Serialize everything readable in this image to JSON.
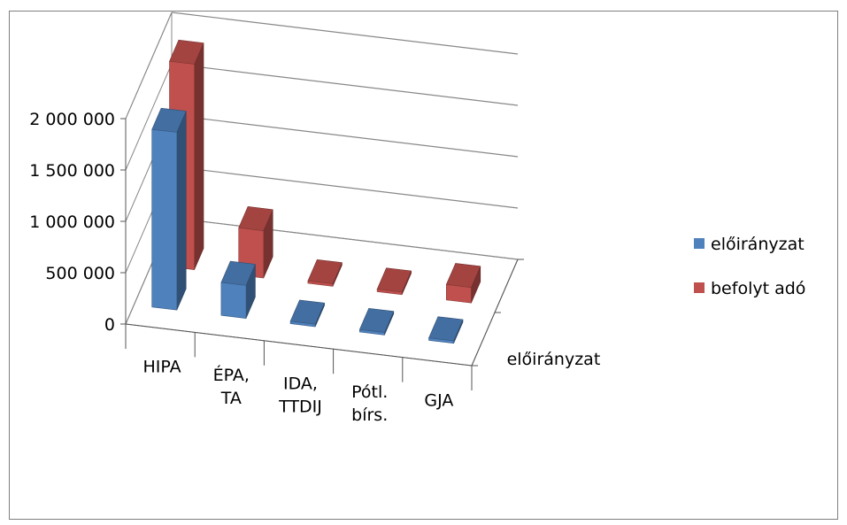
{
  "chart_data": {
    "type": "bar",
    "categories": [
      [
        "HIPA"
      ],
      [
        "ÉPA,",
        "TA"
      ],
      [
        "IDA,",
        "TTDIJ"
      ],
      [
        "Pótl.",
        "bírs."
      ],
      [
        "GJA"
      ]
    ],
    "series": [
      {
        "name": "előirányzat",
        "color": "#4f81bd",
        "values": [
          1730000,
          320000,
          0,
          0,
          0
        ]
      },
      {
        "name": "befolyt adó",
        "color": "#c0504d",
        "values": [
          2000000,
          460000,
          12000,
          8000,
          150000
        ]
      }
    ],
    "ylim": [
      0,
      2000000
    ],
    "yticks": [
      "2 000 000",
      "1 500 000",
      "1 000 000",
      "500 000",
      "0"
    ],
    "ytick_values": [
      2000000,
      1500000,
      1000000,
      500000,
      0
    ],
    "depth_axis_label": "előirányzat",
    "legend_position": "right",
    "grid": true
  }
}
